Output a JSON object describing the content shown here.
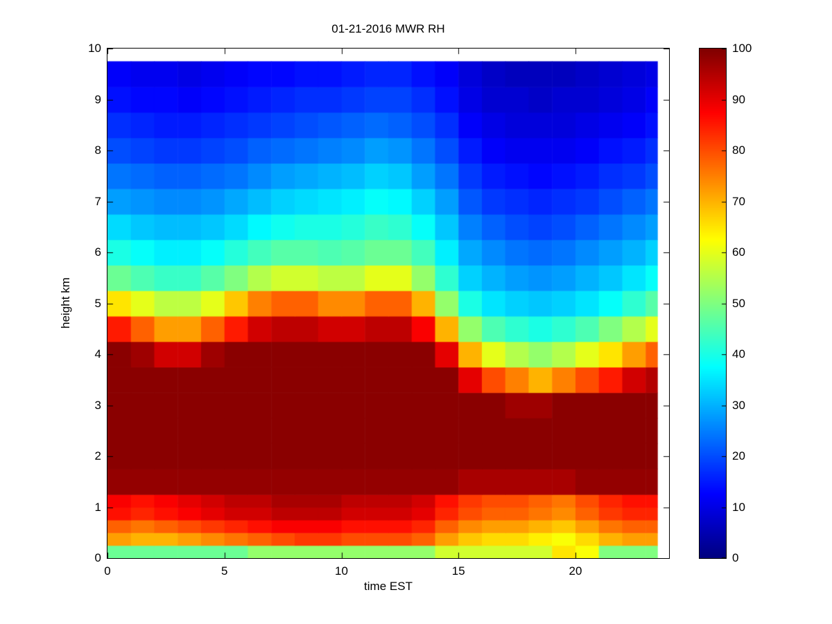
{
  "title": "01-21-2016 MWR RH",
  "xlabel": "time EST",
  "ylabel": "height km",
  "chart_data": {
    "type": "heatmap",
    "title": "01-21-2016 MWR RH",
    "xlabel": "time EST",
    "ylabel": "height km",
    "xlim": [
      0,
      24
    ],
    "ylim": [
      0,
      10
    ],
    "xticks": [
      0,
      5,
      10,
      15,
      20
    ],
    "yticks": [
      0,
      1,
      2,
      3,
      4,
      5,
      6,
      7,
      8,
      9,
      10
    ],
    "grid": false,
    "colorbar": {
      "min": 0,
      "max": 100,
      "ticks": [
        0,
        10,
        20,
        30,
        40,
        50,
        60,
        70,
        80,
        90,
        100
      ],
      "colormap": "jet",
      "position": "right"
    },
    "x_edges": [
      0,
      1,
      2,
      3,
      4,
      5,
      6,
      7,
      8,
      9,
      10,
      11,
      12,
      13,
      14,
      15,
      16,
      17,
      18,
      19,
      20,
      21,
      22,
      23,
      23.5
    ],
    "y_edges": [
      0,
      0.25,
      0.5,
      0.75,
      1.0,
      1.25,
      1.75,
      2.25,
      2.75,
      3.25,
      3.75,
      4.25,
      4.75,
      5.25,
      5.75,
      6.25,
      6.75,
      7.25,
      7.75,
      8.25,
      8.75,
      9.25,
      9.75
    ],
    "values": [
      [
        48,
        48,
        48,
        48,
        48,
        48,
        52,
        52,
        52,
        52,
        52,
        52,
        52,
        52,
        58,
        58,
        58,
        58,
        58,
        65,
        62,
        50,
        50,
        50
      ],
      [
        72,
        70,
        70,
        72,
        74,
        76,
        78,
        80,
        82,
        82,
        80,
        80,
        80,
        78,
        72,
        68,
        66,
        66,
        64,
        62,
        66,
        70,
        72,
        72
      ],
      [
        78,
        76,
        78,
        80,
        82,
        84,
        86,
        88,
        88,
        88,
        86,
        86,
        86,
        84,
        78,
        74,
        72,
        72,
        70,
        68,
        72,
        76,
        78,
        78
      ],
      [
        86,
        84,
        86,
        88,
        90,
        92,
        92,
        94,
        94,
        94,
        92,
        92,
        92,
        90,
        84,
        80,
        78,
        78,
        76,
        74,
        78,
        82,
        84,
        84
      ],
      [
        88,
        86,
        88,
        90,
        92,
        94,
        94,
        96,
        96,
        96,
        94,
        94,
        94,
        92,
        86,
        82,
        80,
        80,
        78,
        76,
        80,
        84,
        86,
        86
      ],
      [
        98,
        98,
        98,
        98,
        98,
        98,
        98,
        98,
        98,
        98,
        98,
        98,
        98,
        98,
        98,
        96,
        96,
        96,
        96,
        96,
        98,
        98,
        98,
        98
      ],
      [
        99,
        99,
        99,
        99,
        99,
        99,
        99,
        99,
        99,
        99,
        99,
        99,
        99,
        99,
        99,
        99,
        99,
        99,
        99,
        99,
        99,
        99,
        99,
        99
      ],
      [
        99,
        99,
        99,
        99,
        99,
        99,
        99,
        99,
        99,
        99,
        99,
        99,
        99,
        99,
        99,
        99,
        99,
        99,
        99,
        99,
        99,
        99,
        99,
        99
      ],
      [
        99,
        99,
        99,
        99,
        99,
        99,
        99,
        99,
        99,
        99,
        99,
        99,
        99,
        99,
        99,
        99,
        99,
        97,
        97,
        99,
        99,
        99,
        99,
        99
      ],
      [
        99,
        99,
        99,
        99,
        99,
        99,
        99,
        99,
        99,
        99,
        99,
        99,
        99,
        99,
        99,
        90,
        80,
        75,
        70,
        75,
        80,
        85,
        92,
        95
      ],
      [
        99,
        97,
        92,
        92,
        97,
        99,
        99,
        99,
        99,
        99,
        99,
        99,
        99,
        99,
        90,
        70,
        60,
        55,
        52,
        55,
        60,
        65,
        72,
        78
      ],
      [
        85,
        78,
        72,
        72,
        78,
        85,
        92,
        94,
        94,
        92,
        92,
        94,
        94,
        88,
        70,
        52,
        45,
        42,
        40,
        42,
        45,
        50,
        55,
        60
      ],
      [
        65,
        60,
        56,
        56,
        60,
        68,
        75,
        78,
        78,
        74,
        74,
        78,
        78,
        70,
        52,
        40,
        35,
        33,
        32,
        33,
        35,
        38,
        42,
        46
      ],
      [
        48,
        45,
        43,
        43,
        46,
        50,
        55,
        58,
        58,
        56,
        56,
        60,
        60,
        52,
        42,
        33,
        30,
        28,
        27,
        28,
        30,
        32,
        35,
        38
      ],
      [
        40,
        38,
        36,
        36,
        38,
        41,
        44,
        46,
        46,
        45,
        46,
        48,
        48,
        44,
        36,
        29,
        26,
        24,
        23,
        24,
        26,
        28,
        30,
        33
      ],
      [
        34,
        32,
        31,
        31,
        32,
        34,
        37,
        39,
        40,
        40,
        41,
        43,
        42,
        38,
        32,
        25,
        22,
        20,
        19,
        20,
        22,
        24,
        26,
        28
      ],
      [
        28,
        27,
        26,
        26,
        27,
        29,
        31,
        33,
        34,
        35,
        36,
        38,
        37,
        33,
        28,
        21,
        18,
        17,
        16,
        17,
        18,
        20,
        22,
        24
      ],
      [
        24,
        23,
        22,
        22,
        23,
        24,
        26,
        28,
        29,
        30,
        31,
        33,
        32,
        28,
        24,
        18,
        15,
        14,
        13,
        14,
        15,
        17,
        18,
        20
      ],
      [
        20,
        19,
        18,
        18,
        19,
        20,
        22,
        23,
        24,
        25,
        26,
        28,
        27,
        24,
        20,
        15,
        12,
        11,
        11,
        11,
        12,
        14,
        15,
        17
      ],
      [
        17,
        16,
        15,
        15,
        16,
        17,
        18,
        19,
        20,
        21,
        22,
        23,
        22,
        20,
        17,
        12,
        10,
        9,
        9,
        9,
        10,
        11,
        12,
        14
      ],
      [
        14,
        13,
        13,
        12,
        13,
        14,
        15,
        16,
        17,
        17,
        18,
        19,
        19,
        17,
        14,
        10,
        8,
        8,
        7,
        8,
        8,
        9,
        10,
        12
      ],
      [
        12,
        11,
        11,
        10,
        11,
        12,
        13,
        13,
        14,
        14,
        15,
        16,
        16,
        14,
        12,
        9,
        7,
        6,
        6,
        6,
        7,
        8,
        9,
        10
      ]
    ]
  }
}
